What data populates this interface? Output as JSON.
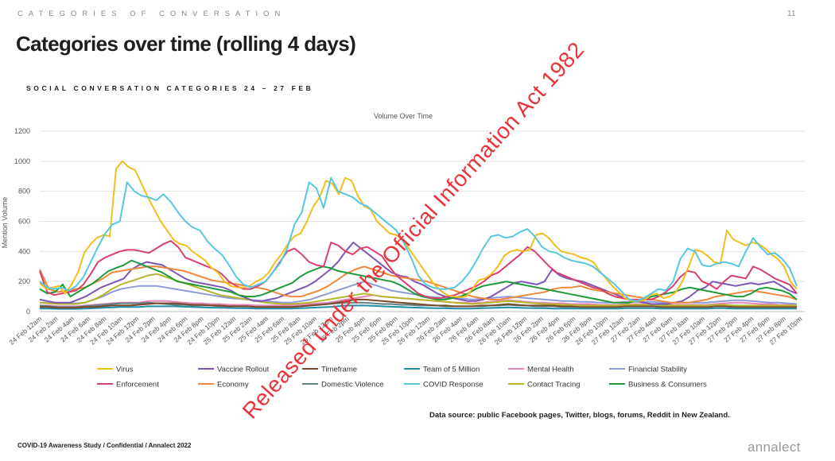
{
  "header": {
    "eyebrow": "CATEGORIES OF CONVERSATION",
    "page_number": "11",
    "title": "Categories over time (rolling 4 days)",
    "subtitle": "SOCIAL CONVERSATION CATEGORIES 24 – 27 FEB"
  },
  "footer": {
    "data_source": "Data source: public Facebook pages, Twitter,  blogs, forums, Reddit in New Zealand.",
    "confidential": "COVID-19 Awareness Study  /  Confidential  / Annalect 2022",
    "brand": "annalect"
  },
  "watermark": "Released under the Official Information Act 1982",
  "chart_data": {
    "type": "line",
    "title": "Volume Over Time",
    "xlabel": "",
    "ylabel": "Mention Volume",
    "ylim": [
      0,
      1200
    ],
    "yticks": [
      0,
      200,
      400,
      600,
      800,
      1000,
      1200
    ],
    "grid": true,
    "legend_position": "bottom",
    "x_tick_labels": [
      "24 Feb 12am",
      "24 Feb 2am",
      "24 Feb 4am",
      "24 Feb 6am",
      "24 Feb 8am",
      "24 Feb 10am",
      "24 Feb 12pm",
      "24 Feb 2pm",
      "24 Feb 4pm",
      "24 Feb 6pm",
      "24 Feb 8pm",
      "24 Feb 10pm",
      "25 Feb 12am",
      "25 Feb 2am",
      "25 Feb 4am",
      "25 Feb 6am",
      "25 Feb 8am",
      "25 Feb 10am",
      "25 Feb 12pm",
      "25 Feb 2pm",
      "25 Feb 4pm",
      "25 Feb 6pm",
      "25 Feb 8pm",
      "25 Feb 10pm",
      "26 Feb 12am",
      "26 Feb 2am",
      "26 Feb 4am",
      "26 Feb 6am",
      "26 Feb 8am",
      "26 Feb 10am",
      "26 Feb 12pm",
      "26 Feb 2pm",
      "26 Feb 4pm",
      "26 Feb 6pm",
      "26 Feb 8pm",
      "26 Feb 10pm",
      "27 Feb 12am",
      "27 Feb 2am",
      "27 Feb 4am",
      "27 Feb 6am",
      "27 Feb 8am",
      "27 Feb 10am",
      "27 Feb 12pm",
      "27 Feb 2pm",
      "27 Feb 4pm",
      "27 Feb 6pm",
      "27 Feb 8pm",
      "27 Feb 10pm"
    ],
    "series": [
      {
        "name": "Virus",
        "color": "#f2be1f",
        "values": [
          190,
          150,
          160,
          170,
          120,
          180,
          260,
          390,
          450,
          490,
          510,
          500,
          950,
          1000,
          960,
          940,
          850,
          760,
          680,
          600,
          540,
          480,
          450,
          440,
          400,
          370,
          340,
          290,
          260,
          200,
          170,
          160,
          160,
          170,
          200,
          220,
          260,
          330,
          380,
          450,
          500,
          520,
          600,
          700,
          760,
          870,
          850,
          780,
          890,
          870,
          770,
          700,
          680,
          600,
          560,
          520,
          510,
          480,
          420,
          360,
          300,
          240,
          180,
          140,
          110,
          100,
          95,
          100,
          150,
          210,
          220,
          250,
          300,
          370,
          400,
          410,
          400,
          410,
          510,
          520,
          490,
          440,
          400,
          390,
          380,
          360,
          350,
          330,
          270,
          220,
          170,
          130,
          90,
          70,
          70,
          75,
          110,
          120,
          90,
          100,
          130,
          200,
          300,
          410,
          400,
          370,
          330,
          320,
          540,
          480,
          460,
          440,
          460,
          450,
          420,
          380,
          350,
          300,
          200,
          150
        ]
      },
      {
        "name": "Vaccine Rollout",
        "color": "#7e57b6",
        "values": [
          80,
          70,
          60,
          60,
          60,
          80,
          100,
          130,
          160,
          180,
          200,
          220,
          280,
          310,
          330,
          320,
          310,
          280,
          250,
          220,
          200,
          190,
          180,
          170,
          160,
          140,
          110,
          90,
          70,
          70,
          80,
          90,
          110,
          130,
          150,
          170,
          200,
          240,
          280,
          330,
          400,
          460,
          420,
          380,
          340,
          300,
          260,
          240,
          230,
          200,
          180,
          150,
          120,
          100,
          90,
          80,
          70,
          70,
          80,
          100,
          130,
          160,
          190,
          200,
          190,
          180,
          200,
          280,
          240,
          220,
          210,
          200,
          180,
          160,
          140,
          120,
          100,
          80,
          70,
          60,
          50,
          50,
          50,
          60,
          70,
          100,
          140,
          160,
          200,
          190,
          180,
          170,
          180,
          190,
          180,
          190,
          200,
          170,
          140,
          120
        ]
      },
      {
        "name": "Timeframe",
        "color": "#7b4a2b",
        "values": [
          30,
          30,
          25,
          25,
          25,
          30,
          30,
          35,
          40,
          40,
          40,
          45,
          50,
          55,
          55,
          55,
          50,
          45,
          45,
          40,
          40,
          35,
          35,
          35,
          30,
          30,
          30,
          30,
          30,
          35,
          40,
          45,
          50,
          60,
          70,
          80,
          80,
          75,
          70,
          65,
          60,
          55,
          50,
          45,
          40,
          40,
          35,
          35,
          35,
          40,
          40,
          45,
          50,
          45,
          40,
          40,
          40,
          40,
          35,
          35,
          30,
          30,
          30,
          30,
          30,
          35,
          35,
          35,
          35,
          30,
          30,
          30,
          30,
          30,
          30,
          35,
          35,
          30,
          30,
          30,
          30,
          30,
          30,
          30,
          30
        ]
      },
      {
        "name": "Team of 5 Million",
        "color": "#1f8ea6",
        "values": [
          20,
          20,
          18,
          18,
          18,
          20,
          22,
          25,
          28,
          30,
          30,
          30,
          35,
          35,
          35,
          35,
          32,
          30,
          28,
          26,
          25,
          24,
          22,
          22,
          20,
          20,
          20,
          20,
          20,
          22,
          25,
          28,
          30,
          35,
          40,
          40,
          40,
          38,
          35,
          32,
          30,
          28,
          26,
          24,
          22,
          22,
          20,
          20,
          20,
          22,
          24,
          26,
          28,
          26,
          24,
          22,
          22,
          20,
          20,
          20,
          20,
          20,
          20,
          20,
          20,
          22,
          22,
          22,
          22,
          20,
          20,
          20,
          20,
          20,
          20,
          22,
          22,
          20,
          20,
          20,
          20,
          20,
          20,
          20,
          20
        ]
      },
      {
        "name": "Mental Health",
        "color": "#e885b8",
        "values": [
          40,
          40,
          35,
          35,
          35,
          40,
          45,
          50,
          55,
          60,
          60,
          60,
          70,
          70,
          70,
          65,
          60,
          55,
          55,
          50,
          50,
          45,
          45,
          45,
          40,
          40,
          40,
          40,
          40,
          45,
          50,
          55,
          60,
          70,
          80,
          90,
          100,
          110,
          100,
          95,
          90,
          85,
          80,
          75,
          70,
          65,
          60,
          60,
          55,
          60,
          65,
          70,
          75,
          70,
          65,
          60,
          60,
          55,
          55,
          50,
          50,
          50,
          45,
          45,
          45,
          50,
          50,
          50,
          50,
          45,
          45,
          45,
          45,
          45,
          45,
          50,
          55,
          60,
          60,
          55,
          50,
          50,
          45,
          45,
          40
        ]
      },
      {
        "name": "Financial Stability",
        "color": "#8e9bd8",
        "values": [
          60,
          60,
          55,
          55,
          55,
          60,
          80,
          100,
          130,
          150,
          160,
          170,
          170,
          170,
          160,
          150,
          140,
          130,
          120,
          110,
          100,
          90,
          85,
          80,
          75,
          70,
          65,
          60,
          60,
          70,
          80,
          100,
          120,
          140,
          160,
          180,
          200,
          180,
          160,
          140,
          130,
          120,
          110,
          100,
          95,
          90,
          90,
          85,
          80,
          85,
          90,
          95,
          100,
          95,
          90,
          85,
          80,
          75,
          70,
          70,
          65,
          65,
          60,
          60,
          60,
          65,
          65,
          65,
          65,
          60,
          60,
          60,
          60,
          60,
          60,
          65,
          70,
          75,
          75,
          70,
          65,
          60,
          60,
          55,
          50
        ]
      },
      {
        "name": "Enforcement",
        "color": "#d9406c",
        "values": [
          270,
          130,
          110,
          120,
          130,
          140,
          180,
          250,
          330,
          360,
          380,
          400,
          410,
          410,
          400,
          390,
          420,
          450,
          470,
          430,
          360,
          340,
          320,
          300,
          280,
          250,
          200,
          170,
          150,
          150,
          170,
          200,
          260,
          330,
          400,
          420,
          380,
          330,
          310,
          300,
          460,
          440,
          400,
          380,
          420,
          430,
          400,
          370,
          300,
          240,
          200,
          160,
          120,
          100,
          90,
          90,
          100,
          110,
          130,
          150,
          170,
          200,
          240,
          260,
          300,
          340,
          380,
          430,
          400,
          350,
          300,
          260,
          240,
          220,
          200,
          180,
          160,
          150,
          120,
          100,
          90,
          80,
          80,
          80,
          80,
          100,
          130,
          170,
          230,
          270,
          260,
          200,
          180,
          150,
          200,
          240,
          230,
          220,
          300,
          280,
          250,
          220,
          200,
          180,
          120
        ]
      },
      {
        "name": "Economy",
        "color": "#f0873a",
        "values": [
          280,
          150,
          130,
          140,
          150,
          160,
          190,
          220,
          260,
          270,
          280,
          290,
          300,
          300,
          290,
          280,
          270,
          250,
          230,
          210,
          200,
          190,
          180,
          170,
          160,
          150,
          130,
          110,
          100,
          100,
          120,
          140,
          170,
          210,
          250,
          280,
          300,
          280,
          260,
          240,
          230,
          220,
          210,
          200,
          180,
          160,
          140,
          120,
          100,
          90,
          80,
          80,
          90,
          100,
          110,
          120,
          130,
          150,
          160,
          160,
          170,
          150,
          140,
          130,
          120,
          110,
          100,
          90,
          80,
          70,
          60,
          60,
          60,
          70,
          80,
          100,
          110,
          120,
          130,
          140,
          130,
          120,
          110,
          100,
          80
        ]
      },
      {
        "name": "Domestic Violence",
        "color": "#5f7f80",
        "values": [
          40,
          35,
          30,
          30,
          30,
          35,
          40,
          45,
          50,
          55,
          55,
          55,
          60,
          55,
          50,
          45,
          45,
          40,
          40,
          40,
          35,
          35,
          35,
          35,
          30,
          30,
          30,
          30,
          30,
          35,
          40,
          45,
          50,
          55,
          60,
          60,
          60,
          55,
          50,
          50,
          45,
          45,
          40,
          40,
          40,
          35,
          35,
          35,
          35,
          35,
          40,
          40,
          45,
          40,
          40,
          35,
          35,
          35,
          30,
          30,
          30,
          30,
          30,
          30,
          30,
          35,
          35,
          35,
          35,
          30,
          30,
          30,
          30,
          30,
          30,
          35,
          35,
          30,
          30,
          30,
          30,
          30,
          30,
          30,
          30
        ]
      },
      {
        "name": "COVID Response",
        "color": "#57c7e0",
        "values": [
          200,
          160,
          150,
          160,
          140,
          170,
          230,
          330,
          430,
          520,
          580,
          600,
          860,
          800,
          770,
          760,
          740,
          780,
          730,
          660,
          600,
          560,
          540,
          470,
          420,
          380,
          310,
          230,
          180,
          160,
          180,
          200,
          260,
          320,
          420,
          580,
          660,
          860,
          820,
          690,
          890,
          800,
          780,
          760,
          720,
          700,
          660,
          620,
          580,
          540,
          460,
          360,
          240,
          180,
          160,
          150,
          150,
          160,
          200,
          260,
          340,
          430,
          500,
          510,
          490,
          500,
          530,
          550,
          500,
          430,
          400,
          390,
          360,
          340,
          330,
          320,
          300,
          260,
          220,
          180,
          130,
          80,
          70,
          90,
          120,
          150,
          140,
          200,
          350,
          420,
          400,
          310,
          300,
          320,
          330,
          320,
          300,
          400,
          490,
          430,
          380,
          390,
          350,
          290,
          170
        ]
      },
      {
        "name": "Contact Tracing",
        "color": "#b7b52a",
        "values": [
          60,
          55,
          50,
          50,
          50,
          60,
          80,
          110,
          150,
          180,
          200,
          220,
          240,
          250,
          230,
          210,
          190,
          170,
          150,
          130,
          110,
          100,
          90,
          80,
          70,
          60,
          55,
          50,
          50,
          55,
          60,
          70,
          80,
          90,
          100,
          110,
          120,
          110,
          100,
          95,
          90,
          85,
          80,
          75,
          70,
          65,
          60,
          55,
          50,
          55,
          60,
          65,
          70,
          65,
          60,
          55,
          50,
          50,
          45,
          45,
          40,
          40,
          40,
          40,
          40,
          45,
          45,
          45,
          45,
          40,
          40,
          40,
          40,
          40,
          40,
          45,
          45,
          40,
          40,
          40,
          40,
          40,
          40,
          40,
          40
        ]
      },
      {
        "name": "Business & Consumers",
        "color": "#1e9a3a",
        "values": [
          150,
          120,
          130,
          180,
          100,
          130,
          160,
          190,
          230,
          270,
          290,
          310,
          340,
          320,
          300,
          280,
          260,
          230,
          200,
          190,
          180,
          170,
          160,
          150,
          140,
          130,
          110,
          100,
          100,
          110,
          130,
          150,
          170,
          190,
          230,
          260,
          280,
          300,
          290,
          270,
          260,
          250,
          240,
          230,
          220,
          210,
          200,
          180,
          150,
          120,
          100,
          90,
          80,
          80,
          90,
          100,
          120,
          150,
          170,
          180,
          190,
          200,
          190,
          180,
          170,
          160,
          150,
          140,
          130,
          120,
          110,
          100,
          90,
          80,
          70,
          60,
          60,
          60,
          70,
          80,
          100,
          110,
          120,
          130,
          150,
          160,
          150,
          140,
          130,
          120,
          110,
          100,
          100,
          120,
          150,
          160,
          150,
          140,
          120,
          80
        ]
      }
    ]
  }
}
